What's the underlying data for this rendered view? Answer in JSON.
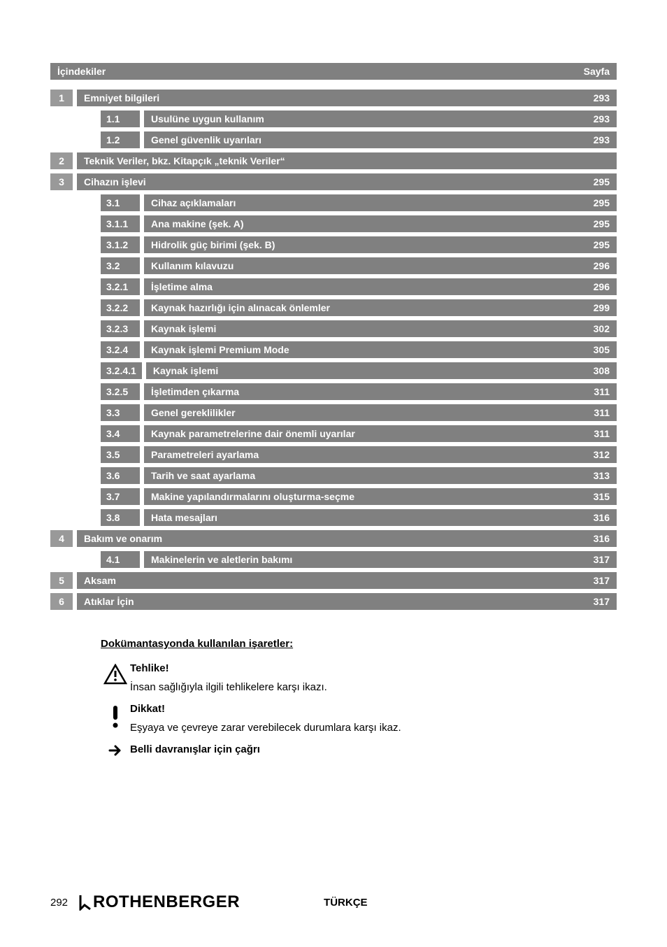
{
  "header": {
    "left": "İçindekiler",
    "right": "Sayfa"
  },
  "toc": [
    {
      "type": "main",
      "num": "1",
      "title": "Emniyet bilgileri",
      "page": "293"
    },
    {
      "type": "sub",
      "num": "1.1",
      "title": "Usulüne uygun kullanım",
      "page": "293"
    },
    {
      "type": "sub",
      "num": "1.2",
      "title": "Genel güvenlik uyarıları",
      "page": "293"
    },
    {
      "type": "main",
      "num": "2",
      "title": "Teknik Veriler, bkz. Kitapçık „teknik Veriler“",
      "page": ""
    },
    {
      "type": "main",
      "num": "3",
      "title": "Cihazın işlevi",
      "page": "295"
    },
    {
      "type": "sub",
      "num": "3.1",
      "title": "Cihaz açıklamaları",
      "page": "295"
    },
    {
      "type": "sub",
      "num": "3.1.1",
      "title": "Ana makine (şek. A)",
      "page": "295"
    },
    {
      "type": "sub",
      "num": "3.1.2",
      "title": "Hidrolik güç birimi (şek. B)",
      "page": "295"
    },
    {
      "type": "sub",
      "num": "3.2",
      "title": "Kullanım kılavuzu",
      "page": "296"
    },
    {
      "type": "sub",
      "num": "3.2.1",
      "title": "İşletime alma",
      "page": "296"
    },
    {
      "type": "sub",
      "num": "3.2.2",
      "title": "Kaynak hazırlığı için alınacak önlemler",
      "page": "299"
    },
    {
      "type": "sub",
      "num": "3.2.3",
      "title": "Kaynak işlemi",
      "page": "302"
    },
    {
      "type": "sub",
      "num": "3.2.4",
      "title": "Kaynak işlemi Premium Mode",
      "page": "305"
    },
    {
      "type": "sub",
      "num": "3.2.4.1",
      "title": "Kaynak işlemi",
      "page": "308"
    },
    {
      "type": "sub",
      "num": "3.2.5",
      "title": "İşletimden çıkarma",
      "page": "311"
    },
    {
      "type": "sub",
      "num": "3.3",
      "title": "Genel gereklilikler",
      "page": "311"
    },
    {
      "type": "sub",
      "num": "3.4",
      "title": "Kaynak parametrelerine dair önemli uyarılar",
      "page": "311"
    },
    {
      "type": "sub",
      "num": "3.5",
      "title": "Parametreleri ayarlama",
      "page": "312"
    },
    {
      "type": "sub",
      "num": "3.6",
      "title": "Tarih ve saat ayarlama",
      "page": "313"
    },
    {
      "type": "sub",
      "num": "3.7",
      "title": "Makine yapılandırmalarını oluşturma-seçme",
      "page": "315"
    },
    {
      "type": "sub",
      "num": "3.8",
      "title": "Hata mesajları",
      "page": "316"
    },
    {
      "type": "main",
      "num": "4",
      "title": "Bakım ve onarım",
      "page": "316"
    },
    {
      "type": "sub",
      "num": "4.1",
      "title": "Makinelerin ve aletlerin bakımı",
      "page": "317"
    },
    {
      "type": "main",
      "num": "5",
      "title": "Aksam",
      "page": "317"
    },
    {
      "type": "main",
      "num": "6",
      "title": "Atıklar İçin",
      "page": "317"
    }
  ],
  "legend": {
    "heading": "Dokümantasyonda kullanılan işaretler:",
    "items": [
      {
        "icon": "warning-triangle",
        "title": "Tehlike!",
        "desc": "İnsan sağlığıyla ilgili tehlikelere karşı ikazı."
      },
      {
        "icon": "exclamation",
        "title": "Dikkat!",
        "desc": "Eşyaya ve çevreye zarar verebilecek durumlara karşı ikaz."
      },
      {
        "icon": "arrow-right",
        "title": "",
        "desc": "Belli davranışlar için çağrı",
        "bold": true
      }
    ]
  },
  "footer": {
    "page": "292",
    "logo": "ROTHENBERGER",
    "lang": "TÜRKÇE"
  },
  "colors": {
    "bar_gray": "#808080",
    "num_gray": "#999999",
    "text_white": "#ffffff"
  }
}
